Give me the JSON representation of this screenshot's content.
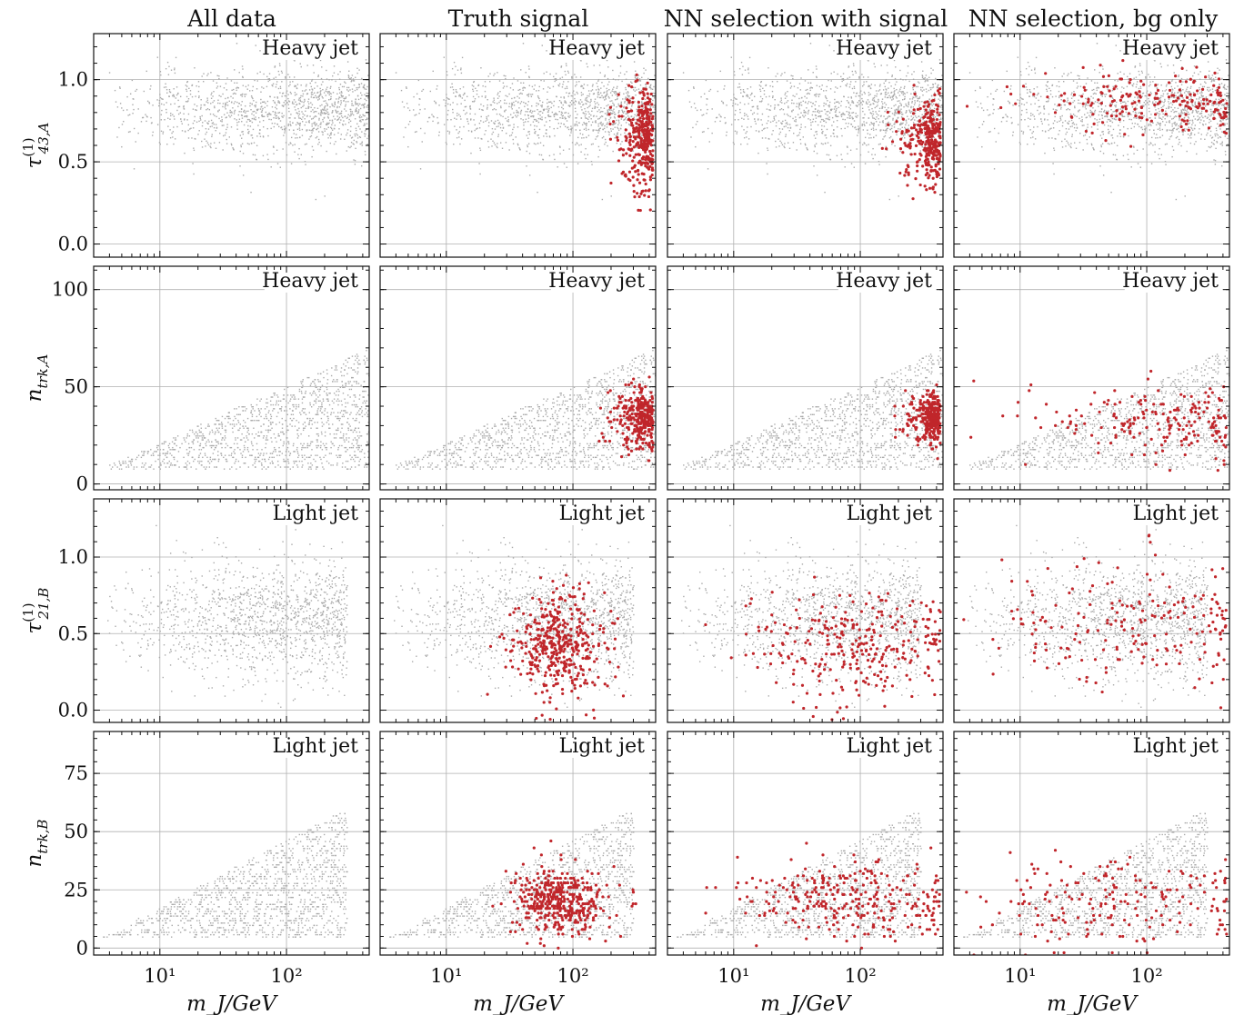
{
  "column_titles": [
    "All data",
    "Truth signal",
    "NN selection with signal",
    "NN selection, bg only"
  ],
  "chart_data": {
    "type": "scatter",
    "grid": true,
    "xscale": "log",
    "xlim": [
      3,
      450
    ],
    "x_ticks": [
      10,
      100
    ],
    "x_tick_labels": [
      "10¹",
      "10²"
    ],
    "xlabel": "m_J/GeV",
    "rows": [
      {
        "ylabel_main": "τ",
        "ylabel_sup": "(1)",
        "ylabel_sub": "43,A",
        "ylim": [
          -0.08,
          1.28
        ],
        "y_ticks": [
          0.0,
          0.5,
          1.0
        ],
        "y_tick_labels": [
          "0.0",
          "0.5",
          "1.0"
        ],
        "annotation": "Heavy jet",
        "background": {
          "x_range": [
            3.5,
            450
          ],
          "y_mean": 0.82,
          "y_spread": 0.13
        },
        "panels": [
          {
            "title": "All data",
            "signal": []
          },
          {
            "title": "Truth signal",
            "signal_cluster": {
              "x_center": 380,
              "x_spread": 0.12,
              "y_center": 0.65,
              "y_spread": 0.16,
              "count": 330
            }
          },
          {
            "title": "NN selection with signal",
            "signal_cluster": {
              "x_center": 380,
              "x_spread": 0.14,
              "y_center": 0.62,
              "y_spread": 0.13,
              "count": 320
            }
          },
          {
            "title": "NN selection, bg only",
            "signal_cluster": {
              "x_center": 120,
              "x_spread": 0.5,
              "y_center": 0.86,
              "y_spread": 0.09,
              "count": 200
            }
          }
        ]
      },
      {
        "ylabel_main": "n",
        "ylabel_sup": "",
        "ylabel_sub": "trk,A",
        "ylim": [
          -3,
          112
        ],
        "y_ticks": [
          0,
          50,
          100
        ],
        "y_tick_labels": [
          "0",
          "50",
          "100"
        ],
        "annotation": "Heavy jet",
        "background": {
          "x_range": [
            3.5,
            450
          ],
          "y_min": 8,
          "y_max": 70
        },
        "panels": [
          {
            "title": "All data",
            "signal": []
          },
          {
            "title": "Truth signal",
            "signal_cluster": {
              "x_center": 380,
              "x_spread": 0.14,
              "y_center": 34,
              "y_spread": 8,
              "count": 320
            }
          },
          {
            "title": "NN selection with signal",
            "signal_cluster": {
              "x_center": 390,
              "x_spread": 0.12,
              "y_center": 34,
              "y_spread": 6,
              "count": 310
            }
          },
          {
            "title": "NN selection, bg only",
            "signal_cluster": {
              "x_center": 130,
              "x_spread": 0.45,
              "y_center": 32,
              "y_spread": 9,
              "count": 200
            }
          }
        ]
      },
      {
        "ylabel_main": "τ",
        "ylabel_sup": "(1)",
        "ylabel_sub": "21,B",
        "ylim": [
          -0.08,
          1.38
        ],
        "y_ticks": [
          0.0,
          0.5,
          1.0
        ],
        "y_tick_labels": [
          "0.0",
          "0.5",
          "1.0"
        ],
        "annotation": "Light jet",
        "background": {
          "x_range": [
            3.5,
            300
          ],
          "y_mean": 0.6,
          "y_spread": 0.2
        },
        "panels": [
          {
            "title": "All data",
            "signal": []
          },
          {
            "title": "Truth signal",
            "signal_cluster": {
              "x_center": 80,
              "x_spread": 0.18,
              "y_center": 0.42,
              "y_spread": 0.17,
              "count": 420
            }
          },
          {
            "title": "NN selection with signal",
            "signal_cluster": {
              "x_center": 90,
              "x_spread": 0.45,
              "y_center": 0.45,
              "y_spread": 0.18,
              "count": 300
            }
          },
          {
            "title": "NN selection, bg only",
            "signal_cluster": {
              "x_center": 80,
              "x_spread": 0.6,
              "y_center": 0.55,
              "y_spread": 0.2,
              "count": 200
            }
          }
        ]
      },
      {
        "ylabel_main": "n",
        "ylabel_sup": "",
        "ylabel_sub": "trk,B",
        "ylim": [
          -3,
          93
        ],
        "y_ticks": [
          0,
          25,
          50,
          75
        ],
        "y_tick_labels": [
          "0",
          "25",
          "50",
          "75"
        ],
        "annotation": "Light jet",
        "background": {
          "x_range": [
            3.5,
            300
          ],
          "y_min": 5,
          "y_max": 60
        },
        "panels": [
          {
            "title": "All data",
            "signal": []
          },
          {
            "title": "Truth signal",
            "signal_cluster": {
              "x_center": 80,
              "x_spread": 0.18,
              "y_center": 20,
              "y_spread": 7,
              "count": 420
            }
          },
          {
            "title": "NN selection with signal",
            "signal_cluster": {
              "x_center": 90,
              "x_spread": 0.45,
              "y_center": 21,
              "y_spread": 8,
              "count": 300
            }
          },
          {
            "title": "NN selection, bg only",
            "signal_cluster": {
              "x_center": 60,
              "x_spread": 0.6,
              "y_center": 20,
              "y_spread": 9,
              "count": 200
            }
          }
        ]
      }
    ]
  },
  "colors": {
    "background_points": "#aaaaaa",
    "signal_points": "#c0262b",
    "grid": "#b0b0b0",
    "axes": "#111111"
  }
}
